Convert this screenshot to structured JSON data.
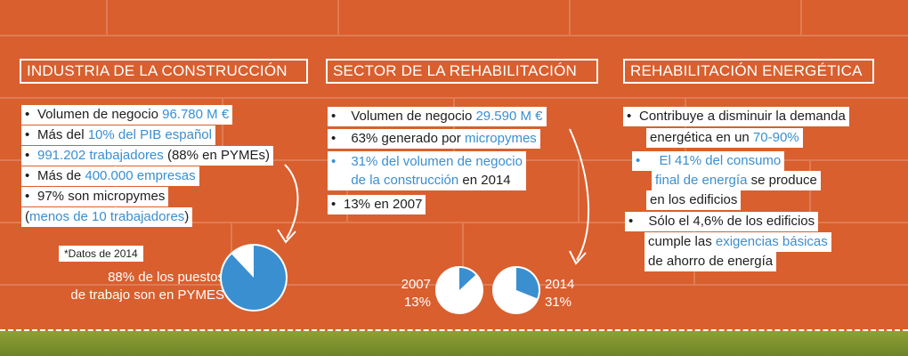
{
  "colors": {
    "background": "#d95f2e",
    "accent_blue": "#3a8fd0",
    "band_green": "#7d9330"
  },
  "industria": {
    "title": "INDUSTRIA DE LA CONSTRUCCIÓN",
    "items": [
      {
        "text": "Volumen de negocio ",
        "highlight": "96.780 M €",
        "suffix": ""
      },
      {
        "text": "Más del ",
        "highlight": "10% del PIB español",
        "suffix": ""
      },
      {
        "text": "",
        "highlight": "991.202 trabajadores",
        "suffix": " (88% en PYMEs)"
      },
      {
        "text": "Más de ",
        "highlight": "400.000 empresas",
        "suffix": ""
      },
      {
        "text": "97% son micropymes",
        "highlight": "",
        "suffix": ""
      },
      {
        "text": "(",
        "highlight": "menos de 10 trabajadores",
        "suffix": ")"
      }
    ],
    "note": "*Datos de 2014",
    "caption_line1": "88% de los puestos",
    "caption_line2": "de trabajo son en PYMES",
    "pie_value": 0.88
  },
  "rehabilitacion": {
    "title": "SECTOR DE LA REHABILITACIÓN",
    "items": [
      {
        "text": "Volumen de negocio ",
        "highlight": "29.590 M €"
      },
      {
        "text": "63% generado por ",
        "highlight": "micropymes"
      },
      {
        "highlight1": "31% del volumen de negocio",
        "highlight2": "de la construcción",
        "suffix": " en 2014"
      },
      {
        "text": "13% en 2007"
      }
    ],
    "pie_2007": {
      "year": "2007",
      "label": "13%",
      "value": 0.13
    },
    "pie_2014": {
      "year": "2014",
      "label": "31%",
      "value": 0.31
    }
  },
  "energetica": {
    "title": "REHABILITACIÓN ENERGÉTICA",
    "item1_line1": "Contribuye a disminuir la demanda",
    "item1_line2_text": "energética en un ",
    "item1_line2_highlight": "70-90%",
    "item2_line1": "El 41% del consumo",
    "item2_line2_highlight": "final de energía",
    "item2_line2_text": " se produce",
    "item2_line3": "en los edificios",
    "item3_line1": "Sólo el 4,6% de los edificios",
    "item3_line2_text": "cumple las ",
    "item3_line2_highlight": "exigencias básicas",
    "item3_line3": "de ahorro de energía"
  }
}
